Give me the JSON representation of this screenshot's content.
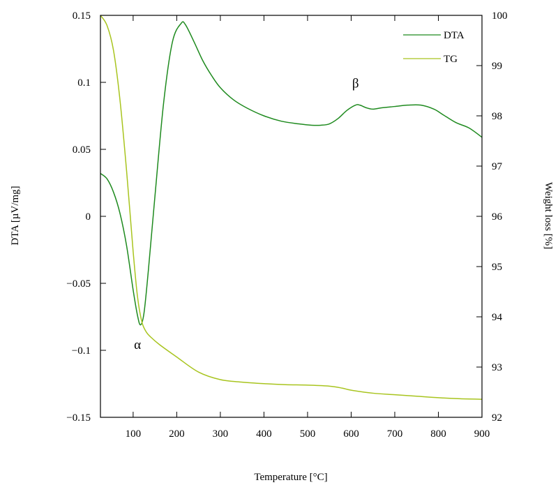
{
  "colors": {
    "dta": "#1e8a1e",
    "tg": "#a8c41e",
    "axis": "#000000",
    "background": "#ffffff"
  },
  "chart_data": {
    "type": "line",
    "title": "",
    "xlabel": "Temperature [°C]",
    "ylabel_left": "DTA [µV/mg]",
    "ylabel_right": "Weight loss [%]",
    "xlim": [
      25,
      900
    ],
    "ylim_left": [
      -0.15,
      0.15
    ],
    "ylim_right": [
      92,
      100
    ],
    "x_ticks": [
      "100",
      "200",
      "300",
      "400",
      "500",
      "600",
      "700",
      "800",
      "900"
    ],
    "y_ticks_left": [
      "0.15",
      "0.1",
      "0.05",
      "0",
      "−0.05",
      "−0.1",
      "−0.15"
    ],
    "y_ticks_right": [
      "100",
      "99",
      "98",
      "97",
      "96",
      "95",
      "94",
      "93",
      "92"
    ],
    "grid": false,
    "legend_position": "top-right",
    "series": [
      {
        "name": "DTA",
        "axis": "left",
        "x": [
          25,
          40,
          55,
          70,
          85,
          100,
          110,
          117,
          125,
          135,
          150,
          170,
          190,
          210,
          220,
          240,
          260,
          280,
          300,
          330,
          360,
          400,
          440,
          480,
          510,
          530,
          550,
          570,
          590,
          610,
          620,
          635,
          650,
          670,
          700,
          730,
          760,
          790,
          810,
          840,
          870,
          900
        ],
        "y": [
          0.032,
          0.028,
          0.018,
          0.002,
          -0.022,
          -0.055,
          -0.074,
          -0.081,
          -0.072,
          -0.04,
          0.015,
          0.085,
          0.13,
          0.144,
          0.143,
          0.13,
          0.116,
          0.105,
          0.096,
          0.087,
          0.081,
          0.075,
          0.071,
          0.069,
          0.068,
          0.068,
          0.069,
          0.073,
          0.079,
          0.083,
          0.083,
          0.081,
          0.08,
          0.081,
          0.082,
          0.083,
          0.083,
          0.08,
          0.076,
          0.07,
          0.066,
          0.059
        ]
      },
      {
        "name": "TG",
        "axis": "right",
        "x": [
          25,
          40,
          55,
          70,
          85,
          100,
          110,
          120,
          130,
          140,
          160,
          200,
          250,
          300,
          350,
          400,
          450,
          500,
          550,
          580,
          600,
          650,
          700,
          750,
          800,
          850,
          900
        ],
        "y": [
          100,
          99.8,
          99.3,
          98.3,
          96.9,
          95.3,
          94.4,
          93.9,
          93.7,
          93.6,
          93.45,
          93.2,
          92.9,
          92.75,
          92.7,
          92.67,
          92.65,
          92.64,
          92.62,
          92.58,
          92.54,
          92.48,
          92.45,
          92.42,
          92.39,
          92.37,
          92.36
        ]
      }
    ],
    "annotations": [
      {
        "text": "α",
        "x": 110,
        "y": -0.099
      },
      {
        "text": "β",
        "x": 610,
        "y": 0.096
      }
    ]
  }
}
